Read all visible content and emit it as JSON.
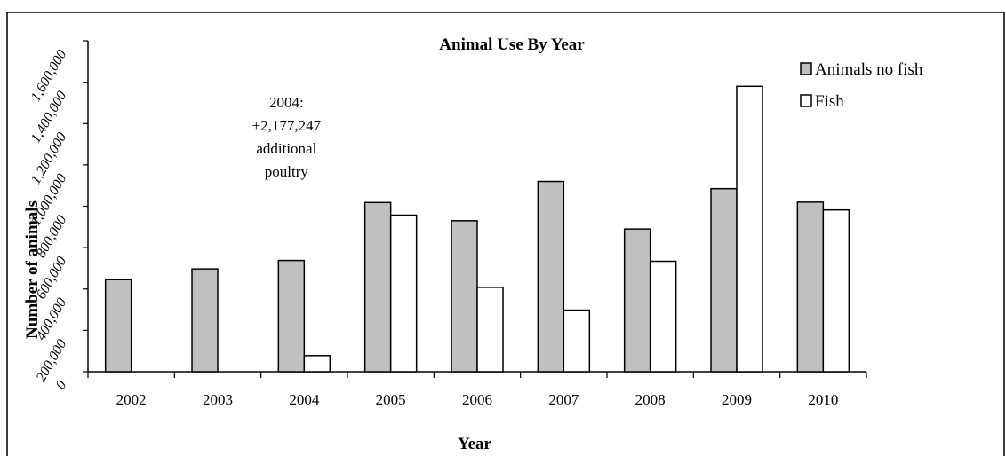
{
  "chart_data": {
    "type": "bar",
    "title": "Animal Use By Year",
    "xlabel": "Year",
    "ylabel": "Number of animals",
    "categories": [
      "2002",
      "2003",
      "2004",
      "2005",
      "2006",
      "2007",
      "2008",
      "2009",
      "2010"
    ],
    "series": [
      {
        "name": "Animals no fish",
        "color": "#c0c0c0",
        "values": [
          445000,
          497000,
          538000,
          818000,
          730000,
          920000,
          690000,
          885000,
          820000
        ]
      },
      {
        "name": "Fish",
        "color": "#ffffff",
        "values": [
          0,
          0,
          78000,
          757000,
          408000,
          298000,
          534000,
          1380000,
          782000
        ]
      }
    ],
    "ylim": [
      0,
      1600000
    ],
    "yticks": [
      "0",
      "200,000",
      "400,000",
      "600,000",
      "800,000",
      "1,000,000",
      "1,200,000",
      "1,400,000",
      "1,600,000"
    ],
    "legend_position": "top-right",
    "grid": false,
    "annotation": {
      "category": "2004",
      "lines": [
        "2004:",
        "+2,177,247",
        "additional",
        "poultry"
      ]
    }
  }
}
